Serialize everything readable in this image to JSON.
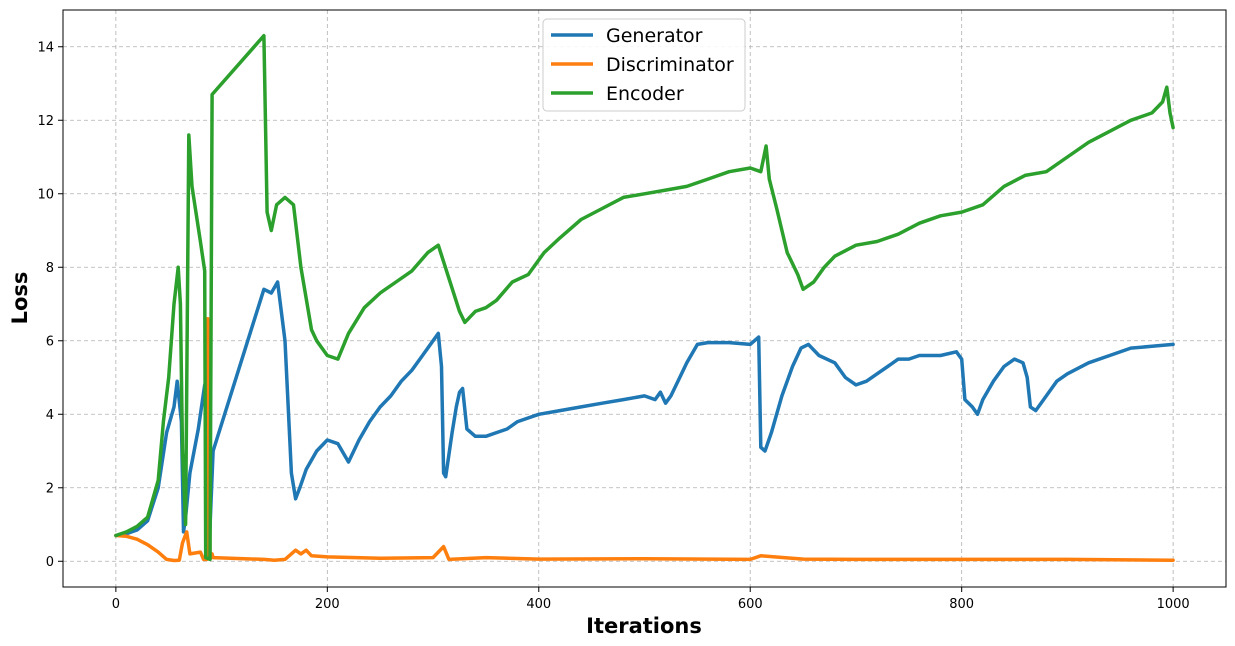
{
  "chart_data": {
    "type": "line",
    "title": "",
    "xlabel": "Iterations",
    "ylabel": "Loss",
    "xlim": [
      -50,
      1050
    ],
    "ylim": [
      -0.7,
      15.0
    ],
    "x_ticks": [
      0,
      200,
      400,
      600,
      800,
      1000
    ],
    "y_ticks": [
      0,
      2,
      4,
      6,
      8,
      10,
      12,
      14
    ],
    "grid": true,
    "legend_position": "top-center",
    "series": [
      {
        "name": "Generator",
        "color": "#1f77b4",
        "points": [
          [
            0,
            0.7
          ],
          [
            10,
            0.75
          ],
          [
            20,
            0.85
          ],
          [
            30,
            1.1
          ],
          [
            40,
            2.0
          ],
          [
            48,
            3.5
          ],
          [
            55,
            4.2
          ],
          [
            58,
            4.9
          ],
          [
            62,
            3.8
          ],
          [
            64,
            0.8
          ],
          [
            66,
            1.2
          ],
          [
            70,
            2.4
          ],
          [
            78,
            3.6
          ],
          [
            84,
            4.8
          ],
          [
            88,
            0.2
          ],
          [
            92,
            3.0
          ],
          [
            140,
            7.4
          ],
          [
            147,
            7.3
          ],
          [
            153,
            7.6
          ],
          [
            160,
            6.0
          ],
          [
            166,
            2.4
          ],
          [
            170,
            1.7
          ],
          [
            174,
            2.0
          ],
          [
            180,
            2.5
          ],
          [
            190,
            3.0
          ],
          [
            200,
            3.3
          ],
          [
            210,
            3.2
          ],
          [
            220,
            2.7
          ],
          [
            230,
            3.3
          ],
          [
            240,
            3.8
          ],
          [
            250,
            4.2
          ],
          [
            260,
            4.5
          ],
          [
            270,
            4.9
          ],
          [
            280,
            5.2
          ],
          [
            290,
            5.6
          ],
          [
            300,
            6.0
          ],
          [
            305,
            6.2
          ],
          [
            308,
            5.3
          ],
          [
            310,
            2.4
          ],
          [
            312,
            2.3
          ],
          [
            318,
            3.5
          ],
          [
            322,
            4.2
          ],
          [
            325,
            4.6
          ],
          [
            328,
            4.7
          ],
          [
            332,
            3.6
          ],
          [
            340,
            3.4
          ],
          [
            350,
            3.4
          ],
          [
            360,
            3.5
          ],
          [
            370,
            3.6
          ],
          [
            380,
            3.8
          ],
          [
            400,
            4.0
          ],
          [
            420,
            4.1
          ],
          [
            440,
            4.2
          ],
          [
            460,
            4.3
          ],
          [
            480,
            4.4
          ],
          [
            500,
            4.5
          ],
          [
            510,
            4.4
          ],
          [
            515,
            4.6
          ],
          [
            520,
            4.3
          ],
          [
            525,
            4.5
          ],
          [
            530,
            4.8
          ],
          [
            540,
            5.4
          ],
          [
            550,
            5.9
          ],
          [
            560,
            5.95
          ],
          [
            580,
            5.95
          ],
          [
            600,
            5.9
          ],
          [
            608,
            6.1
          ],
          [
            610,
            3.1
          ],
          [
            614,
            3.0
          ],
          [
            620,
            3.5
          ],
          [
            630,
            4.5
          ],
          [
            640,
            5.3
          ],
          [
            648,
            5.8
          ],
          [
            655,
            5.9
          ],
          [
            665,
            5.6
          ],
          [
            680,
            5.4
          ],
          [
            690,
            5.0
          ],
          [
            700,
            4.8
          ],
          [
            710,
            4.9
          ],
          [
            720,
            5.1
          ],
          [
            730,
            5.3
          ],
          [
            740,
            5.5
          ],
          [
            750,
            5.5
          ],
          [
            760,
            5.6
          ],
          [
            780,
            5.6
          ],
          [
            795,
            5.7
          ],
          [
            800,
            5.5
          ],
          [
            803,
            4.4
          ],
          [
            810,
            4.2
          ],
          [
            815,
            4.0
          ],
          [
            820,
            4.4
          ],
          [
            830,
            4.9
          ],
          [
            840,
            5.3
          ],
          [
            850,
            5.5
          ],
          [
            858,
            5.4
          ],
          [
            862,
            5.0
          ],
          [
            865,
            4.2
          ],
          [
            870,
            4.1
          ],
          [
            880,
            4.5
          ],
          [
            890,
            4.9
          ],
          [
            900,
            5.1
          ],
          [
            920,
            5.4
          ],
          [
            940,
            5.6
          ],
          [
            960,
            5.8
          ],
          [
            980,
            5.85
          ],
          [
            1000,
            5.9
          ]
        ]
      },
      {
        "name": "Discriminator",
        "color": "#ff7f0e",
        "points": [
          [
            0,
            0.7
          ],
          [
            10,
            0.68
          ],
          [
            20,
            0.6
          ],
          [
            30,
            0.45
          ],
          [
            40,
            0.25
          ],
          [
            48,
            0.05
          ],
          [
            55,
            0.02
          ],
          [
            60,
            0.03
          ],
          [
            63,
            0.5
          ],
          [
            67,
            0.8
          ],
          [
            70,
            0.2
          ],
          [
            80,
            0.25
          ],
          [
            83,
            0.05
          ],
          [
            86,
            0.05
          ],
          [
            87,
            6.6
          ],
          [
            88,
            5.0
          ],
          [
            89,
            0.05
          ],
          [
            91,
            0.2
          ],
          [
            92,
            0.1
          ],
          [
            140,
            0.05
          ],
          [
            150,
            0.03
          ],
          [
            160,
            0.05
          ],
          [
            170,
            0.3
          ],
          [
            175,
            0.2
          ],
          [
            180,
            0.3
          ],
          [
            185,
            0.15
          ],
          [
            200,
            0.12
          ],
          [
            250,
            0.08
          ],
          [
            300,
            0.1
          ],
          [
            310,
            0.4
          ],
          [
            315,
            0.05
          ],
          [
            350,
            0.1
          ],
          [
            400,
            0.06
          ],
          [
            500,
            0.07
          ],
          [
            600,
            0.05
          ],
          [
            610,
            0.15
          ],
          [
            650,
            0.06
          ],
          [
            700,
            0.05
          ],
          [
            800,
            0.05
          ],
          [
            900,
            0.05
          ],
          [
            1000,
            0.03
          ]
        ]
      },
      {
        "name": "Encoder",
        "color": "#2ca02c",
        "points": [
          [
            0,
            0.7
          ],
          [
            10,
            0.8
          ],
          [
            20,
            0.95
          ],
          [
            30,
            1.2
          ],
          [
            40,
            2.2
          ],
          [
            45,
            3.8
          ],
          [
            50,
            5.0
          ],
          [
            55,
            7.0
          ],
          [
            59,
            8.0
          ],
          [
            61,
            7.0
          ],
          [
            63,
            3.0
          ],
          [
            66,
            1.0
          ],
          [
            69,
            11.6
          ],
          [
            72,
            10.2
          ],
          [
            80,
            8.7
          ],
          [
            84,
            7.9
          ],
          [
            85,
            0.1
          ],
          [
            89,
            0.05
          ],
          [
            91,
            12.7
          ],
          [
            140,
            14.3
          ],
          [
            143,
            9.5
          ],
          [
            147,
            9.0
          ],
          [
            152,
            9.7
          ],
          [
            160,
            9.9
          ],
          [
            168,
            9.7
          ],
          [
            175,
            8.0
          ],
          [
            185,
            6.3
          ],
          [
            190,
            6.0
          ],
          [
            200,
            5.6
          ],
          [
            210,
            5.5
          ],
          [
            220,
            6.2
          ],
          [
            235,
            6.9
          ],
          [
            250,
            7.3
          ],
          [
            265,
            7.6
          ],
          [
            280,
            7.9
          ],
          [
            295,
            8.4
          ],
          [
            305,
            8.6
          ],
          [
            315,
            7.7
          ],
          [
            325,
            6.8
          ],
          [
            330,
            6.5
          ],
          [
            340,
            6.8
          ],
          [
            350,
            6.9
          ],
          [
            360,
            7.1
          ],
          [
            375,
            7.6
          ],
          [
            390,
            7.8
          ],
          [
            405,
            8.4
          ],
          [
            420,
            8.8
          ],
          [
            440,
            9.3
          ],
          [
            460,
            9.6
          ],
          [
            480,
            9.9
          ],
          [
            500,
            10.0
          ],
          [
            520,
            10.1
          ],
          [
            540,
            10.2
          ],
          [
            560,
            10.4
          ],
          [
            580,
            10.6
          ],
          [
            600,
            10.7
          ],
          [
            610,
            10.6
          ],
          [
            615,
            11.3
          ],
          [
            618,
            10.4
          ],
          [
            625,
            9.6
          ],
          [
            635,
            8.4
          ],
          [
            645,
            7.8
          ],
          [
            650,
            7.4
          ],
          [
            660,
            7.6
          ],
          [
            670,
            8.0
          ],
          [
            680,
            8.3
          ],
          [
            700,
            8.6
          ],
          [
            720,
            8.7
          ],
          [
            740,
            8.9
          ],
          [
            760,
            9.2
          ],
          [
            780,
            9.4
          ],
          [
            800,
            9.5
          ],
          [
            820,
            9.7
          ],
          [
            840,
            10.2
          ],
          [
            860,
            10.5
          ],
          [
            880,
            10.6
          ],
          [
            900,
            11.0
          ],
          [
            920,
            11.4
          ],
          [
            940,
            11.7
          ],
          [
            960,
            12.0
          ],
          [
            980,
            12.2
          ],
          [
            990,
            12.5
          ],
          [
            994,
            12.9
          ],
          [
            997,
            12.2
          ],
          [
            1000,
            11.8
          ]
        ]
      }
    ]
  }
}
